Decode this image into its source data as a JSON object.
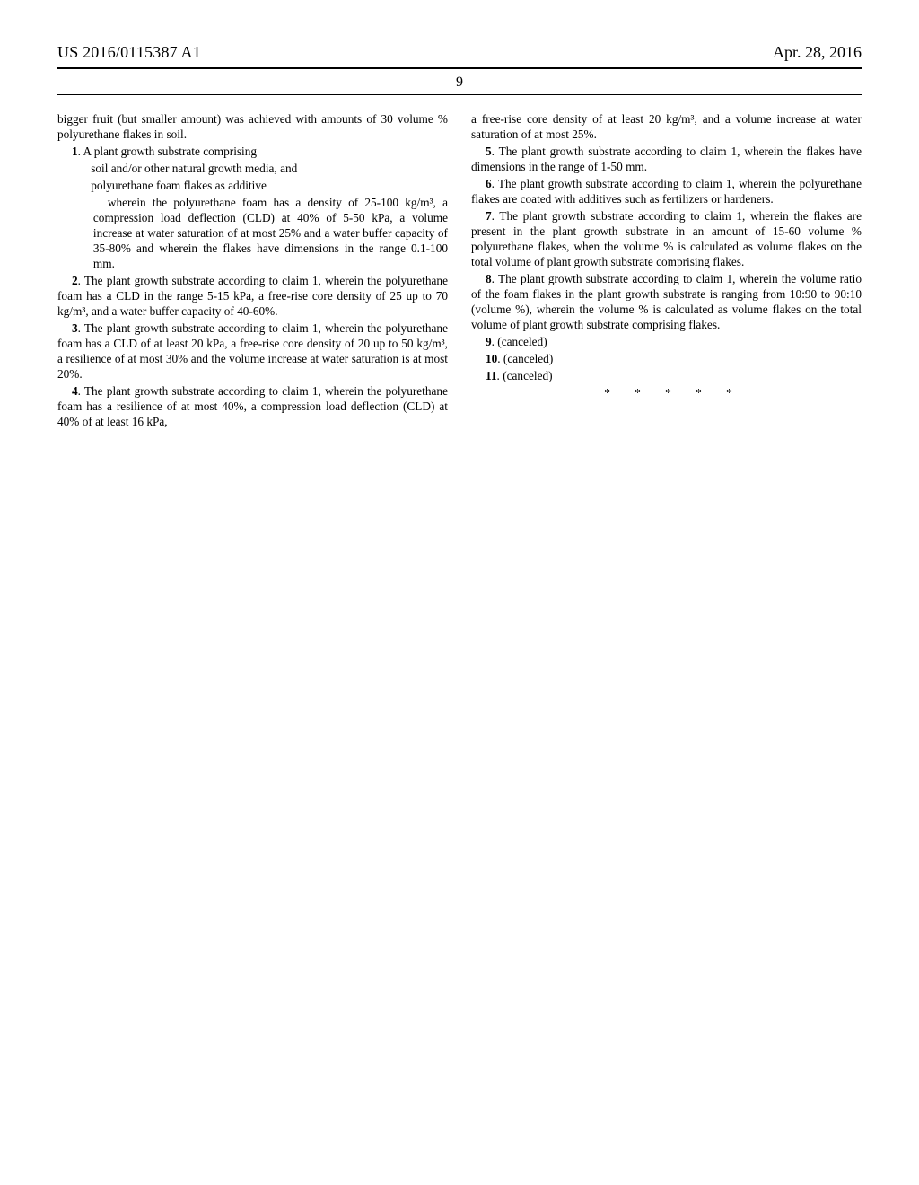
{
  "header": {
    "pubnum": "US 2016/0115387 A1",
    "pubdate": "Apr. 28, 2016",
    "pageno": "9"
  },
  "col1": {
    "intro": "bigger fruit (but smaller amount) was achieved with amounts of 30 volume % polyurethane flakes in soil.",
    "c1_lead": "1. A plant growth substrate comprising",
    "c1_a": "soil and/or other natural growth media, and",
    "c1_b": "polyurethane foam flakes as additive",
    "c1_c": "wherein the polyurethane foam has a density of 25-100 kg/m³, a compression load deflection (CLD) at 40% of 5-50 kPa, a volume increase at water saturation of at most 25% and a water buffer capacity of 35-80% and wherein the flakes have dimensions in the range 0.1-100 mm.",
    "c2": "2. The plant growth substrate according to claim 1, wherein the polyurethane foam has a CLD in the range 5-15 kPa, a free-rise core density of 25 up to 70 kg/m³, and a water buffer capacity of 40-60%.",
    "c3": "3. The plant growth substrate according to claim 1, wherein the polyurethane foam has a CLD of at least 20 kPa, a free-rise core density of 20 up to 50 kg/m³, a resilience of at most 30% and the volume increase at water saturation is at most 20%.",
    "c4": "4. The plant growth substrate according to claim 1, wherein the polyurethane foam has a resilience of at most 40%, a compression load deflection (CLD) at 40% of at least 16 kPa,"
  },
  "col2": {
    "c4_cont": "a free-rise core density of at least 20 kg/m³, and a volume increase at water saturation of at most 25%.",
    "c5": "5. The plant growth substrate according to claim 1, wherein the flakes have dimensions in the range of 1-50 mm.",
    "c6": "6. The plant growth substrate according to claim 1, wherein the polyurethane flakes are coated with additives such as fertilizers or hardeners.",
    "c7": "7. The plant growth substrate according to claim 1, wherein the flakes are present in the plant growth substrate in an amount of 15-60 volume % polyurethane flakes, when the volume % is calculated as volume flakes on the total volume of plant growth substrate comprising flakes.",
    "c8": "8. The plant growth substrate according to claim 1, wherein the volume ratio of the foam flakes in the plant growth substrate is ranging from 10:90 to 90:10 (volume %), wherein the volume % is calculated as volume flakes on the total volume of plant growth substrate comprising flakes.",
    "c9": "9. (canceled)",
    "c10": "10. (canceled)",
    "c11": "11. (canceled)",
    "stars": "*   *   *   *   *"
  }
}
